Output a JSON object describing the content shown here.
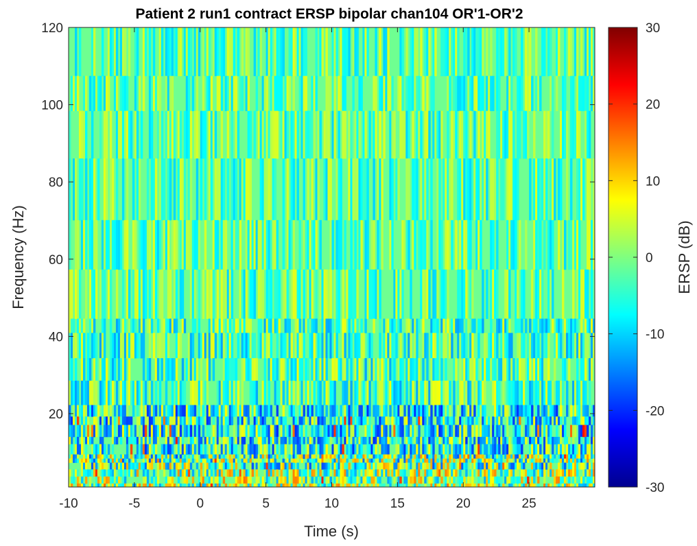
{
  "chart_data": {
    "type": "heatmap",
    "title": "Patient 2 run1 contract ERSP bipolar chan104 OR'1-OR'2",
    "xlabel": "Time (s)",
    "ylabel": "Frequency (Hz)",
    "colorbar_label": "ERSP (dB)",
    "colormap": "jet",
    "xlim": [
      -10,
      30
    ],
    "ylim": [
      1,
      120
    ],
    "clim": [
      -30,
      30
    ],
    "x_ticks": [
      "-10",
      "-5",
      "0",
      "5",
      "10",
      "15",
      "20",
      "25"
    ],
    "x_tick_values": [
      -10,
      -5,
      0,
      5,
      10,
      15,
      20,
      25
    ],
    "y_ticks": [
      "20",
      "40",
      "60",
      "80",
      "100",
      "120"
    ],
    "y_tick_values": [
      20,
      40,
      60,
      80,
      100,
      120
    ],
    "colorbar_ticks": [
      "30",
      "20",
      "10",
      "0",
      "-10",
      "-20",
      "-30"
    ],
    "colorbar_tick_values": [
      30,
      20,
      10,
      0,
      -10,
      -20,
      -30
    ],
    "grid": false
  }
}
